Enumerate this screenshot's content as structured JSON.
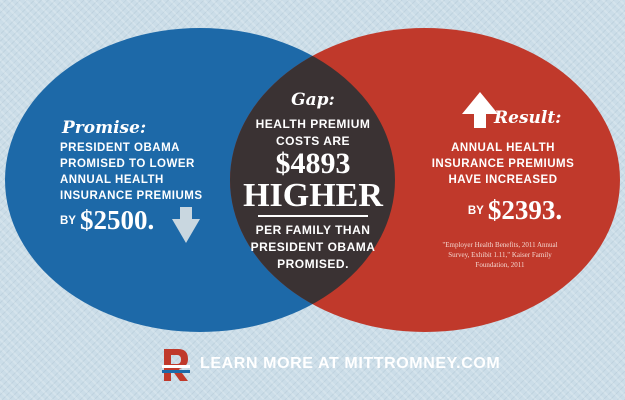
{
  "promise": {
    "label": "Promise:",
    "text": "PRESIDENT OBAMA PROMISED TO LOWER ANNUAL HEALTH INSURANCE PREMIUMS",
    "by": "BY",
    "amount": "$2500."
  },
  "gap": {
    "label": "Gap:",
    "text_1": "HEALTH PREMIUM COSTS ARE",
    "amount": "$4893",
    "higher": "HIGHER",
    "text_2": "PER FAMILY THAN PRESIDENT OBAMA PROMISED."
  },
  "result": {
    "label": "Result:",
    "text": "ANNUAL HEALTH INSURANCE PREMIUMS HAVE INCREASED",
    "by": "BY",
    "amount": "$2393."
  },
  "footnote": "\"Employer Health Benefits, 2011 Annual Survey, Exhibit 1.11,\" Kaiser Family Foundation, 2011",
  "footer": {
    "cta": "LEARN MORE AT MITTROMNEY.COM"
  },
  "colors": {
    "blue_circle": "#1d69a8",
    "red_circle": "#c0392b",
    "overlap": "#3a3233",
    "background": "#cbdde8",
    "arrow": "#c9d7e0"
  },
  "icons": {
    "down_arrow": "down-arrow-icon",
    "up_arrow": "up-arrow-icon",
    "logo": "romney-r-logo-icon"
  }
}
